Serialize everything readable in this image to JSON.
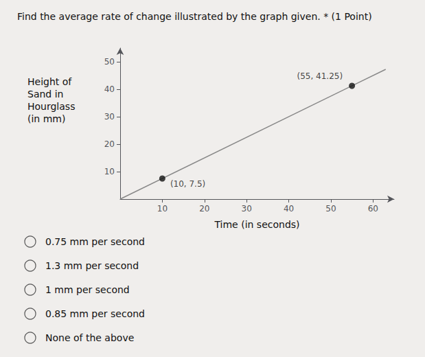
{
  "chart_data": {
    "type": "line",
    "title": "Find the average rate of change illustrated by the graph given. * (1 Point)",
    "xlabel": "Time (in seconds)",
    "ylabel": "Height of\nSand in\nHourglass\n(in mm)",
    "xlim": [
      0,
      65
    ],
    "ylim": [
      0,
      55
    ],
    "xticks": [
      10,
      20,
      30,
      40,
      50,
      60
    ],
    "yticks": [
      10,
      20,
      30,
      40,
      50
    ],
    "grid": false,
    "color": "#f0eeec",
    "series": [
      {
        "type": "line",
        "x": [
          0,
          63
        ],
        "values": [
          0,
          47.25
        ],
        "color": "#888888",
        "marker": "none"
      },
      {
        "type": "scatter",
        "x": [
          10,
          55
        ],
        "values": [
          7.5,
          41.25
        ],
        "color": "#111111",
        "marker": "circle",
        "value_labels": [
          "(10, 7.5)",
          "(55, 41.25)"
        ]
      }
    ],
    "annotations": [
      "0.75 mm per second",
      "1.3 mm per second",
      "1 mm per second",
      "0.85 mm per second",
      "None of the above"
    ]
  }
}
